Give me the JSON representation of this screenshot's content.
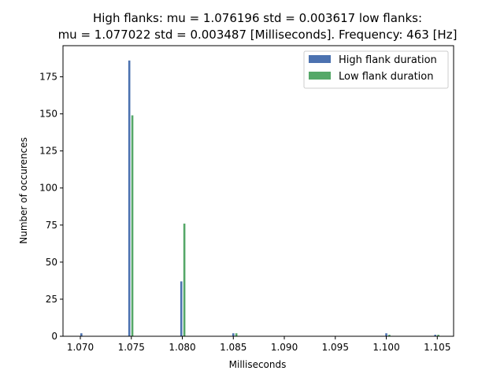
{
  "chart_data": {
    "type": "bar",
    "title_line1": "High flanks: mu = 1.076196  std = 0.003617  low flanks:",
    "title_line2": "mu = 1.077022  std = 0.003487  [Milliseconds]. Frequency: 463 [Hz]",
    "xlabel": "Milliseconds",
    "ylabel": "Number of occurences",
    "xlim": [
      1.0683,
      1.1066
    ],
    "ylim": [
      0,
      196
    ],
    "xticks": [
      1.07,
      1.075,
      1.08,
      1.085,
      1.09,
      1.095,
      1.1,
      1.105
    ],
    "xtick_labels": [
      "1.070",
      "1.075",
      "1.080",
      "1.085",
      "1.090",
      "1.095",
      "1.100",
      "1.105"
    ],
    "yticks": [
      0,
      25,
      50,
      75,
      100,
      125,
      150,
      175
    ],
    "ytick_labels": [
      "0",
      "25",
      "50",
      "75",
      "100",
      "125",
      "150",
      "175"
    ],
    "legend_position": "top-right",
    "series": [
      {
        "name": "High flank duration",
        "color": "#4c72b0",
        "bars": [
          {
            "x": 1.0701,
            "y": 2
          },
          {
            "x": 1.0748,
            "y": 186
          },
          {
            "x": 1.0799,
            "y": 37
          },
          {
            "x": 1.085,
            "y": 2
          },
          {
            "x": 1.1,
            "y": 2
          },
          {
            "x": 1.1048,
            "y": 1
          }
        ]
      },
      {
        "name": "Low flank duration",
        "color": "#55a868",
        "bars": [
          {
            "x": 1.0751,
            "y": 149
          },
          {
            "x": 1.0802,
            "y": 76
          },
          {
            "x": 1.0853,
            "y": 2
          },
          {
            "x": 1.1003,
            "y": 1
          },
          {
            "x": 1.1051,
            "y": 1
          }
        ]
      }
    ]
  }
}
